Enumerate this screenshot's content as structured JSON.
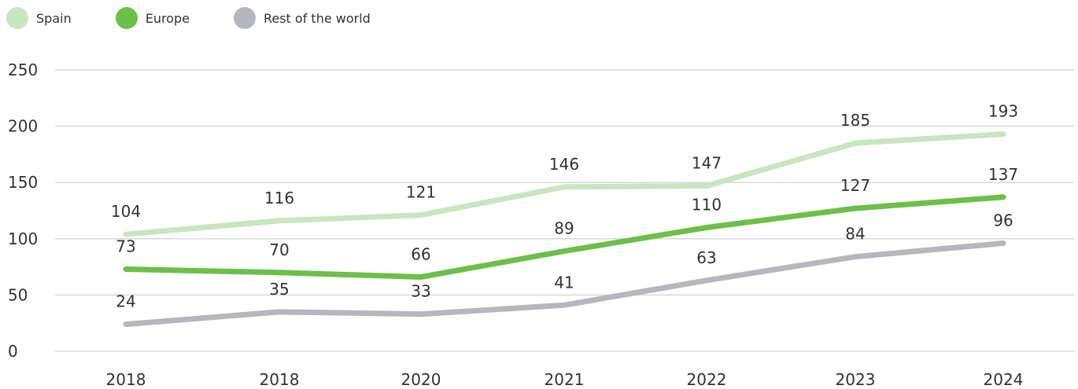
{
  "chart_data": {
    "type": "line",
    "categories": [
      "2018",
      "2018",
      "2020",
      "2021",
      "2022",
      "2023",
      "2024"
    ],
    "series": [
      {
        "name": "Spain",
        "color": "#c8e6bf",
        "values": [
          104,
          116,
          121,
          146,
          147,
          185,
          193
        ]
      },
      {
        "name": "Europe",
        "color": "#6cc04a",
        "values": [
          73,
          70,
          66,
          89,
          110,
          127,
          137
        ]
      },
      {
        "name": "Rest of the world",
        "color": "#b6b7bd",
        "values": [
          24,
          35,
          33,
          41,
          63,
          84,
          96
        ]
      }
    ],
    "y_ticks": [
      "0",
      "50",
      "100",
      "150",
      "200",
      "250"
    ],
    "ylim": [
      0,
      250
    ],
    "grid": true,
    "legend_position": "top-left",
    "title": "",
    "xlabel": "",
    "ylabel": ""
  }
}
